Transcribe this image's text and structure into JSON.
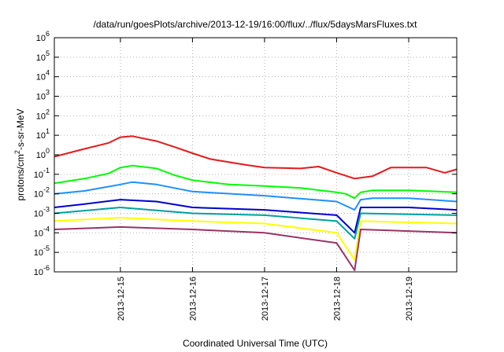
{
  "chart_data": {
    "type": "line",
    "title": "/data/run/goesPlots/archive/2013-12-19/16:00/flux/../flux/5daysMarsFluxes.txt",
    "xlabel": "Coordinated Universal Time (UTC)",
    "ylabel": "protons/cm2-s-sr-MeV",
    "ylabel_main": "protons/cm",
    "ylabel_sup": "2",
    "ylabel_rest": "-s-sr-MeV",
    "yscale": "log",
    "ylim": [
      1e-06,
      1000000.0
    ],
    "xlim": [
      "2013-12-14 02:00",
      "2013-12-19 16:00"
    ],
    "y_ticks": [
      {
        "base": "10",
        "exp": "-6"
      },
      {
        "base": "10",
        "exp": "-5"
      },
      {
        "base": "10",
        "exp": "-4"
      },
      {
        "base": "10",
        "exp": "-3"
      },
      {
        "base": "10",
        "exp": "-2"
      },
      {
        "base": "10",
        "exp": "-1"
      },
      {
        "base": "10",
        "exp": "0"
      },
      {
        "base": "10",
        "exp": "1"
      },
      {
        "base": "10",
        "exp": "2"
      },
      {
        "base": "10",
        "exp": "3"
      },
      {
        "base": "10",
        "exp": "4"
      },
      {
        "base": "10",
        "exp": "5"
      },
      {
        "base": "10",
        "exp": "6"
      }
    ],
    "x_ticks": [
      "2013-12-15",
      "2013-12-16",
      "2013-12-17",
      "2013-12-18",
      "2013-12-19"
    ],
    "grid": true,
    "series": [
      {
        "color": "#e41a1c",
        "samples": [
          [
            "2013-12-14 02:00",
            0.8
          ],
          [
            "2013-12-14 12:00",
            2.0
          ],
          [
            "2013-12-14 20:00",
            4.0
          ],
          [
            "2013-12-15 00:00",
            8.0
          ],
          [
            "2013-12-15 04:00",
            9.0
          ],
          [
            "2013-12-15 12:00",
            5.0
          ],
          [
            "2013-12-15 18:00",
            2.5
          ],
          [
            "2013-12-16 00:00",
            1.2
          ],
          [
            "2013-12-16 06:00",
            0.6
          ],
          [
            "2013-12-16 18:00",
            0.3
          ],
          [
            "2013-12-17 00:00",
            0.22
          ],
          [
            "2013-12-17 12:00",
            0.2
          ],
          [
            "2013-12-17 18:00",
            0.25
          ],
          [
            "2013-12-18 00:00",
            0.12
          ],
          [
            "2013-12-18 06:00",
            0.06
          ],
          [
            "2013-12-18 12:00",
            0.08
          ],
          [
            "2013-12-18 18:00",
            0.22
          ],
          [
            "2013-12-19 06:00",
            0.22
          ],
          [
            "2013-12-19 12:00",
            0.12
          ],
          [
            "2013-12-19 16:00",
            0.18
          ]
        ]
      },
      {
        "color": "#00ff00",
        "samples": [
          [
            "2013-12-14 02:00",
            0.035
          ],
          [
            "2013-12-14 12:00",
            0.06
          ],
          [
            "2013-12-14 20:00",
            0.11
          ],
          [
            "2013-12-15 00:00",
            0.22
          ],
          [
            "2013-12-15 04:00",
            0.28
          ],
          [
            "2013-12-15 12:00",
            0.2
          ],
          [
            "2013-12-15 18:00",
            0.09
          ],
          [
            "2013-12-16 00:00",
            0.05
          ],
          [
            "2013-12-16 12:00",
            0.03
          ],
          [
            "2013-12-17 00:00",
            0.025
          ],
          [
            "2013-12-17 12:00",
            0.02
          ],
          [
            "2013-12-18 00:00",
            0.012
          ],
          [
            "2013-12-18 03:00",
            0.01
          ],
          [
            "2013-12-18 06:00",
            0.006
          ],
          [
            "2013-12-18 08:00",
            0.012
          ],
          [
            "2013-12-18 12:00",
            0.015
          ],
          [
            "2013-12-19 00:00",
            0.015
          ],
          [
            "2013-12-19 16:00",
            0.012
          ]
        ]
      },
      {
        "color": "#1e90ff",
        "samples": [
          [
            "2013-12-14 02:00",
            0.01
          ],
          [
            "2013-12-14 12:00",
            0.014
          ],
          [
            "2013-12-15 00:00",
            0.03
          ],
          [
            "2013-12-15 04:00",
            0.04
          ],
          [
            "2013-12-15 12:00",
            0.03
          ],
          [
            "2013-12-16 00:00",
            0.013
          ],
          [
            "2013-12-17 00:00",
            0.008
          ],
          [
            "2013-12-18 00:00",
            0.004
          ],
          [
            "2013-12-18 06:00",
            0.0015
          ],
          [
            "2013-12-18 08:00",
            0.005
          ],
          [
            "2013-12-18 12:00",
            0.006
          ],
          [
            "2013-12-19 00:00",
            0.006
          ],
          [
            "2013-12-19 16:00",
            0.004
          ]
        ]
      },
      {
        "color": "#0000cd",
        "samples": [
          [
            "2013-12-14 02:00",
            0.002
          ],
          [
            "2013-12-14 12:00",
            0.003
          ],
          [
            "2013-12-15 00:00",
            0.005
          ],
          [
            "2013-12-15 12:00",
            0.004
          ],
          [
            "2013-12-16 00:00",
            0.002
          ],
          [
            "2013-12-17 00:00",
            0.0015
          ],
          [
            "2013-12-18 00:00",
            0.0008
          ],
          [
            "2013-12-18 06:00",
            0.0001
          ],
          [
            "2013-12-18 08:00",
            0.002
          ],
          [
            "2013-12-19 00:00",
            0.002
          ],
          [
            "2013-12-19 16:00",
            0.0015
          ]
        ]
      },
      {
        "color": "#00a0a0",
        "samples": [
          [
            "2013-12-14 02:00",
            0.001
          ],
          [
            "2013-12-15 00:00",
            0.002
          ],
          [
            "2013-12-16 00:00",
            0.001
          ],
          [
            "2013-12-17 00:00",
            0.0008
          ],
          [
            "2013-12-18 00:00",
            0.0004
          ],
          [
            "2013-12-18 06:00",
            5e-05
          ],
          [
            "2013-12-18 08:00",
            0.001
          ],
          [
            "2013-12-19 16:00",
            0.0008
          ]
        ]
      },
      {
        "color": "#ffff00",
        "samples": [
          [
            "2013-12-14 02:00",
            0.0004
          ],
          [
            "2013-12-15 00:00",
            0.0006
          ],
          [
            "2013-12-16 00:00",
            0.0004
          ],
          [
            "2013-12-17 00:00",
            0.0003
          ],
          [
            "2013-12-18 00:00",
            0.0001
          ],
          [
            "2013-12-18 06:00",
            4e-06
          ],
          [
            "2013-12-18 08:00",
            0.0004
          ],
          [
            "2013-12-19 16:00",
            0.0003
          ]
        ]
      },
      {
        "color": "#993366",
        "samples": [
          [
            "2013-12-14 02:00",
            0.00015
          ],
          [
            "2013-12-15 00:00",
            0.0002
          ],
          [
            "2013-12-16 00:00",
            0.00015
          ],
          [
            "2013-12-17 00:00",
            0.0001
          ],
          [
            "2013-12-18 00:00",
            3e-05
          ],
          [
            "2013-12-18 06:00",
            1.2e-06
          ],
          [
            "2013-12-18 08:00",
            0.00015
          ],
          [
            "2013-12-19 16:00",
            0.0001
          ]
        ]
      }
    ]
  }
}
